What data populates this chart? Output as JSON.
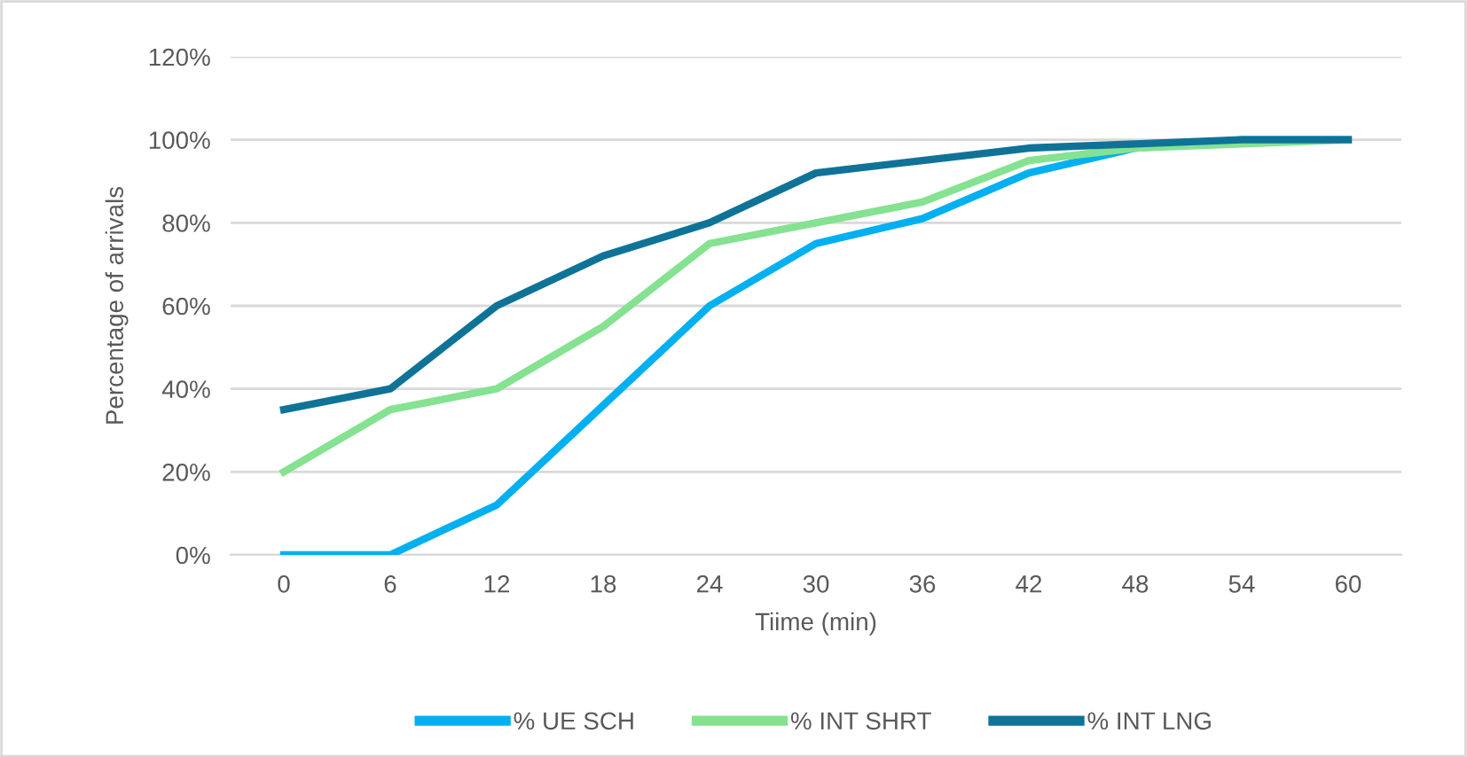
{
  "chart_data": {
    "type": "line",
    "xlabel": "Tiime (min)",
    "ylabel": "Percentage of arrivals",
    "categories": [
      "0",
      "6",
      "12",
      "18",
      "24",
      "30",
      "36",
      "42",
      "48",
      "54",
      "60"
    ],
    "series": [
      {
        "name": "% UE SCH",
        "color": "#00b0f0",
        "values": [
          0,
          0,
          12,
          36,
          60,
          75,
          81,
          92,
          98,
          100,
          100
        ]
      },
      {
        "name": "% INT SHRT",
        "color": "#84e291",
        "values": [
          20,
          35,
          40,
          55,
          75,
          80,
          85,
          95,
          98,
          99,
          100
        ]
      },
      {
        "name": "% INT LNG",
        "color": "#0f7398",
        "values": [
          35,
          40,
          60,
          72,
          80,
          92,
          95,
          98,
          99,
          100,
          100
        ]
      }
    ],
    "ylim": [
      0,
      120
    ],
    "yticks": [
      {
        "value": 0,
        "label": "0%"
      },
      {
        "value": 20,
        "label": "20%"
      },
      {
        "value": 40,
        "label": "40%"
      },
      {
        "value": 60,
        "label": "60%"
      },
      {
        "value": 80,
        "label": "80%"
      },
      {
        "value": 100,
        "label": "100%"
      },
      {
        "value": 120,
        "label": "120%"
      }
    ],
    "grid": "y",
    "legend": "bottom",
    "marker": "none",
    "line_style": "solid"
  }
}
